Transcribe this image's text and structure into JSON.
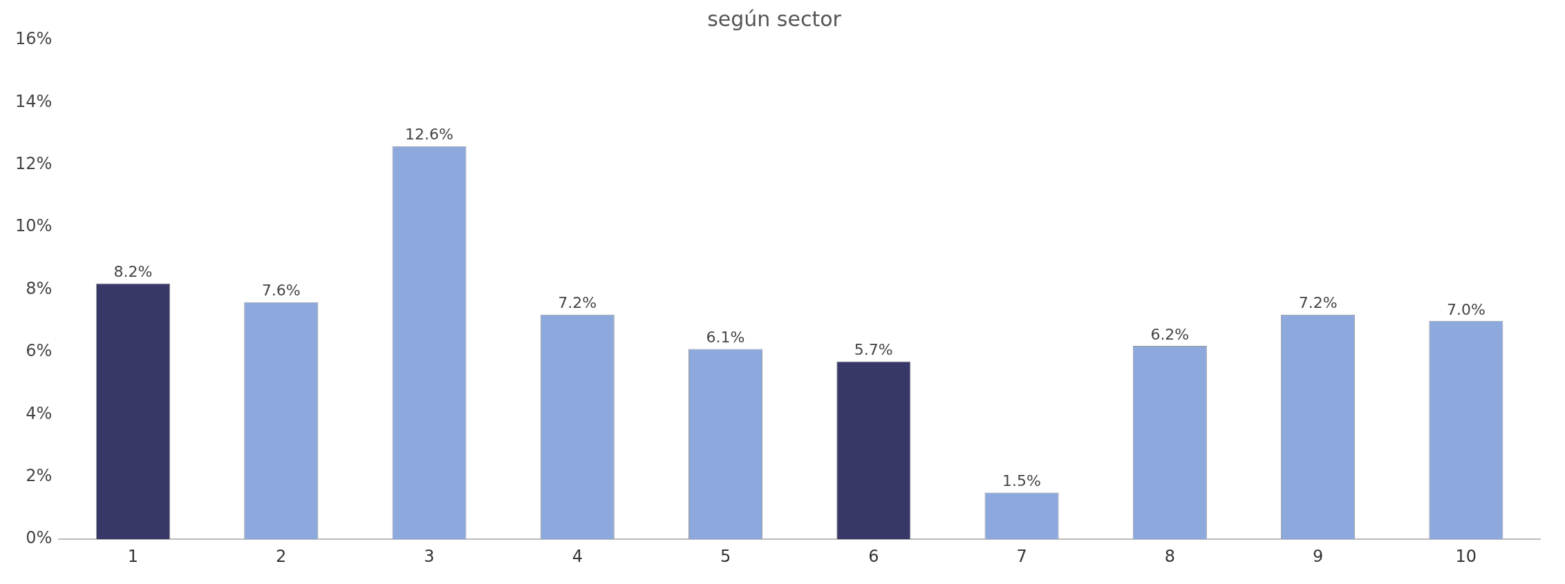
{
  "chart_data": {
    "type": "bar",
    "title": "según sector",
    "categories": [
      "1",
      "2",
      "3",
      "4",
      "5",
      "6",
      "7",
      "8",
      "9",
      "10"
    ],
    "values": [
      8.2,
      7.6,
      12.6,
      7.2,
      6.1,
      5.7,
      1.5,
      6.2,
      7.2,
      7.0
    ],
    "colors": [
      "#383868",
      "#8ca8dc",
      "#8ca8dc",
      "#8ca8dc",
      "#8ca8dc",
      "#383868",
      "#8ca8dc",
      "#8ca8dc",
      "#8ca8dc",
      "#8ca8dc"
    ],
    "value_labels": [
      "8.2%",
      "7.6%",
      "12.6%",
      "7.2%",
      "6.1%",
      "5.7%",
      "1.5%",
      "6.2%",
      "7.2%",
      "7.0%"
    ],
    "ylim": [
      0,
      16
    ],
    "yticks": [
      {
        "value": 0,
        "label": "0%"
      },
      {
        "value": 2,
        "label": "2%"
      },
      {
        "value": 4,
        "label": "4%"
      },
      {
        "value": 6,
        "label": "6%"
      },
      {
        "value": 8,
        "label": "8%"
      },
      {
        "value": 10,
        "label": "10%"
      },
      {
        "value": 12,
        "label": "12%"
      },
      {
        "value": 14,
        "label": "14%"
      },
      {
        "value": 16,
        "label": "16%"
      }
    ],
    "grid": false,
    "legend": false
  }
}
